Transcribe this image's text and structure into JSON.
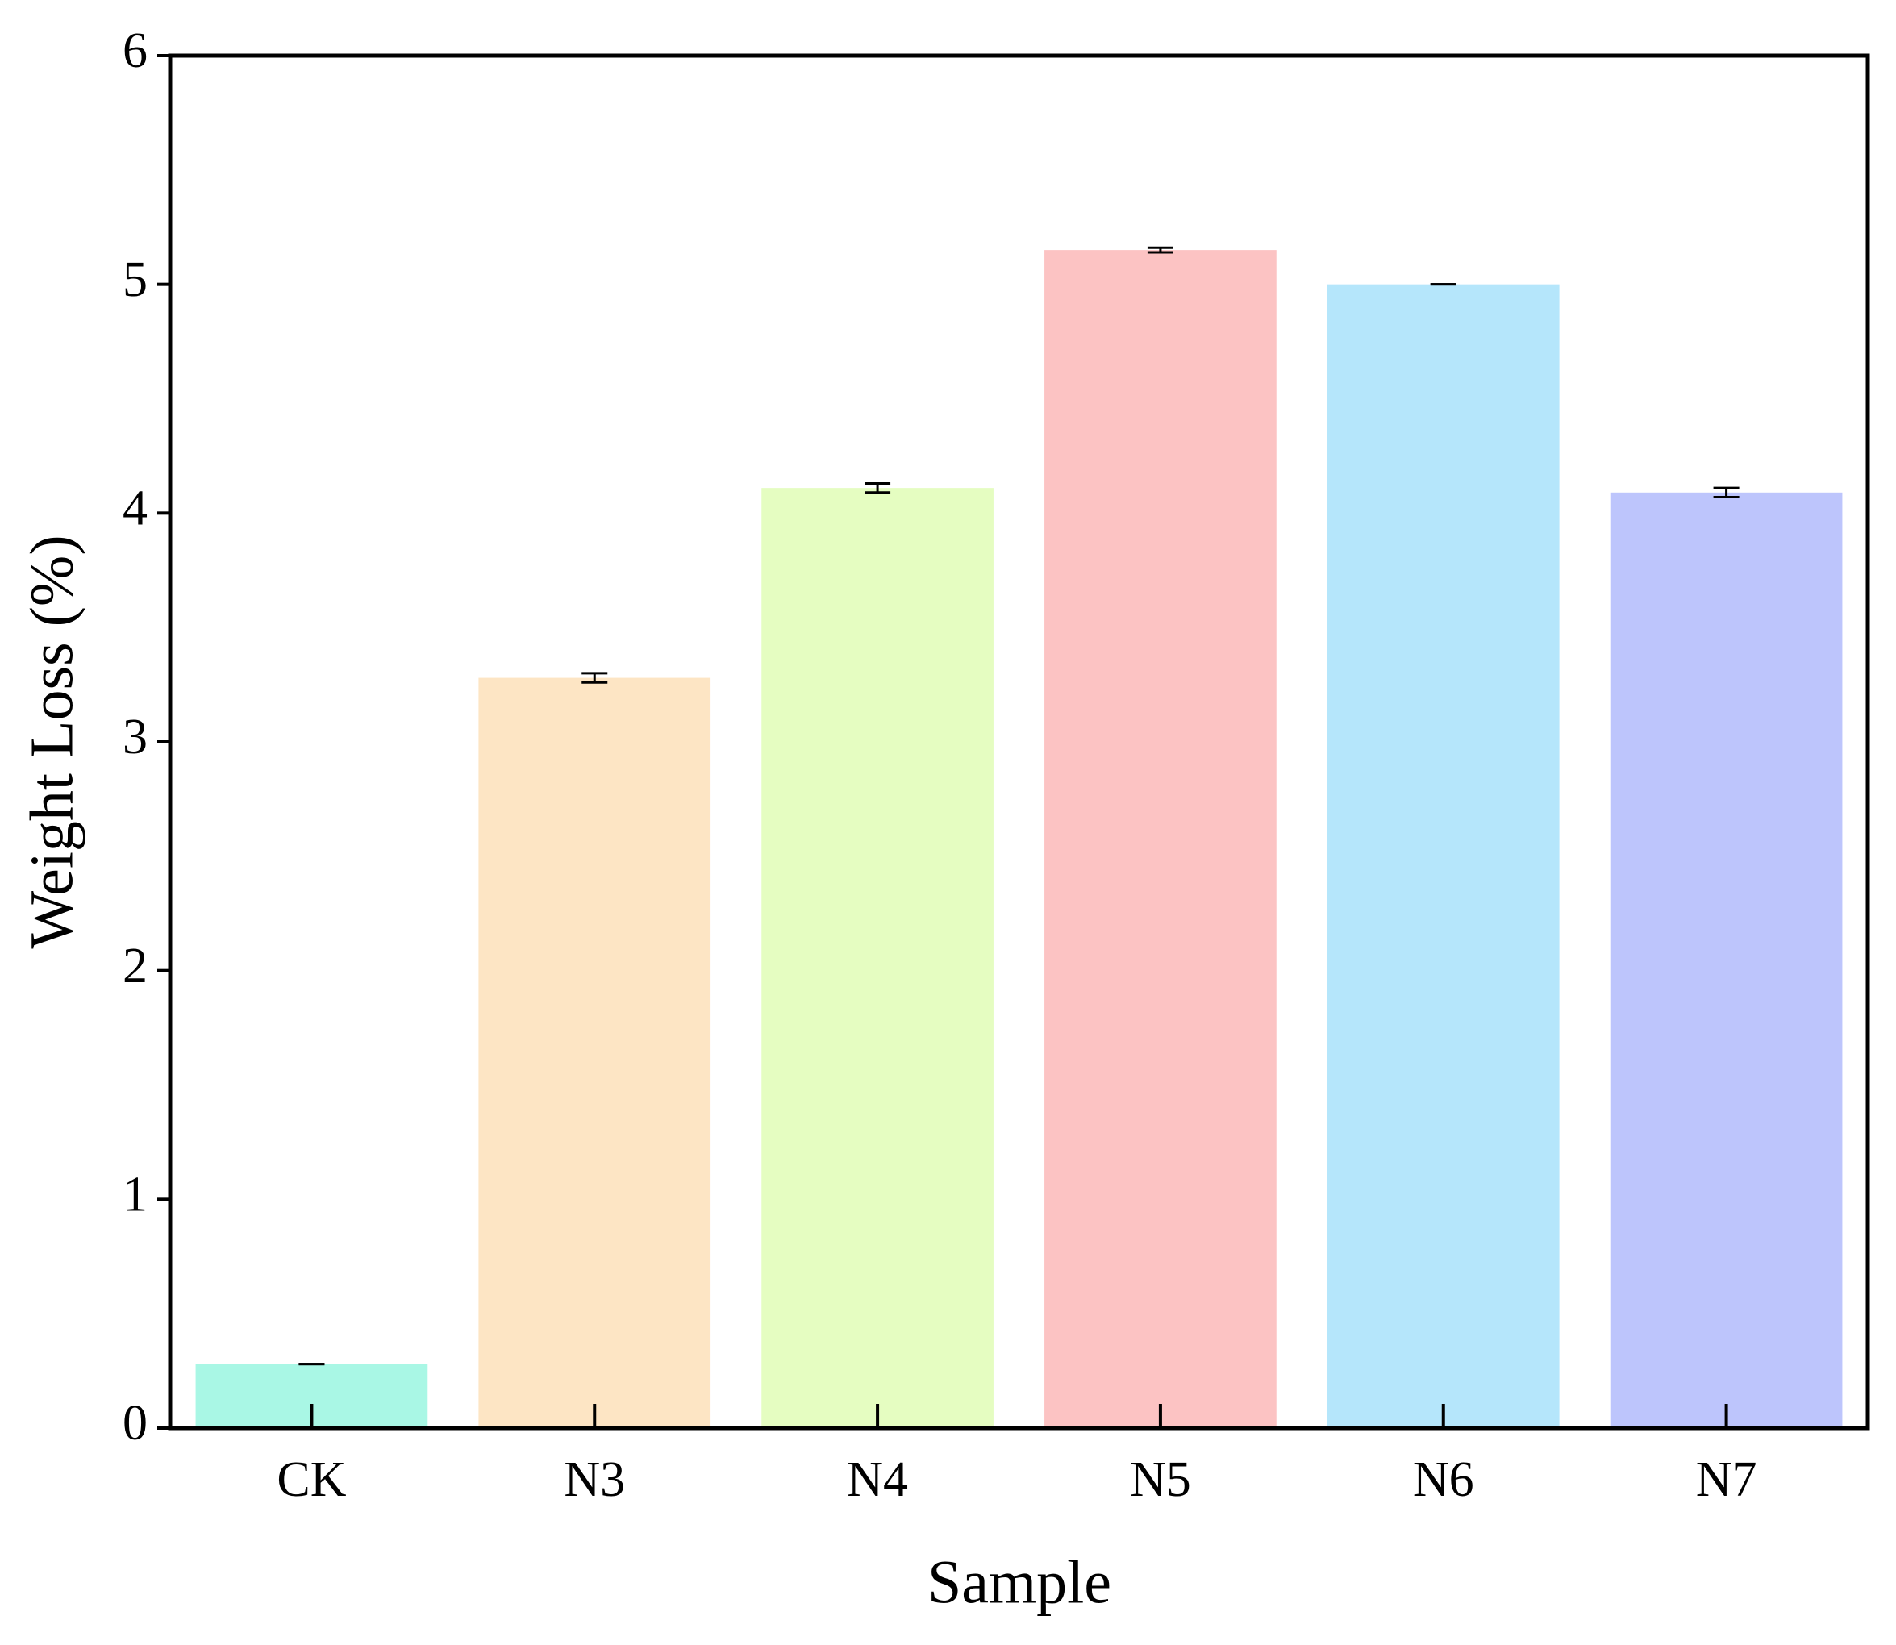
{
  "chart_data": {
    "type": "bar",
    "x_label": "Sample",
    "y_label": "Weight Loss (%)",
    "categories": [
      "CK",
      "N3",
      "N4",
      "N5",
      "N6",
      "N7"
    ],
    "values": [
      0.28,
      3.28,
      4.11,
      5.15,
      5.0,
      4.09
    ],
    "errors": [
      0.0,
      0.02,
      0.02,
      0.01,
      0.0,
      0.02
    ],
    "colors": [
      "#a9f7e5",
      "#fde5c4",
      "#e5fdc1",
      "#fcc3c3",
      "#b5e6fb",
      "#bdc5fc"
    ],
    "ylim": [
      0,
      6
    ],
    "yticks": [
      0,
      1,
      2,
      3,
      4,
      5,
      6
    ],
    "grid": false
  }
}
